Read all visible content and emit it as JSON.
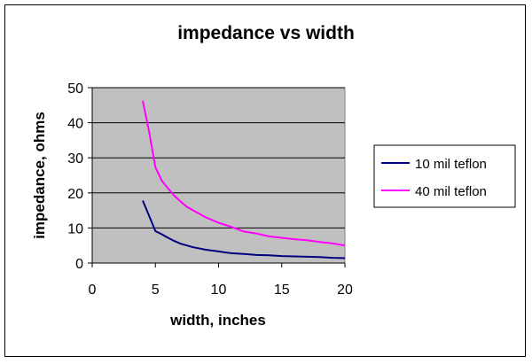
{
  "chart_data": {
    "type": "line",
    "title": "impedance vs width",
    "xlabel": "width, inches",
    "ylabel": "impedance, ohms",
    "xlim": [
      0,
      20
    ],
    "ylim": [
      0,
      50
    ],
    "xticks": [
      0,
      5,
      10,
      15,
      20
    ],
    "yticks": [
      0,
      10,
      20,
      30,
      40,
      50
    ],
    "grid": true,
    "legend_position": "right",
    "plot_background": "#c0c0c0",
    "series": [
      {
        "name": "10 mil teflon",
        "color": "#000080",
        "x": [
          4,
          4.5,
          5,
          5.5,
          6,
          6.5,
          7,
          7.5,
          8,
          9,
          10,
          11,
          12,
          13,
          14,
          15,
          16,
          17,
          18,
          19,
          20
        ],
        "y": [
          17.8,
          13.5,
          9.1,
          8.2,
          7.2,
          6.3,
          5.5,
          5.0,
          4.5,
          3.8,
          3.3,
          2.8,
          2.6,
          2.3,
          2.2,
          2.0,
          1.9,
          1.8,
          1.7,
          1.5,
          1.4
        ]
      },
      {
        "name": "40 mil teflon",
        "color": "#ff00ff",
        "x": [
          4,
          4.5,
          5,
          5.5,
          6,
          6.5,
          7,
          7.5,
          8,
          9,
          10,
          11,
          12,
          13,
          14,
          15,
          16,
          17,
          18,
          19,
          20
        ],
        "y": [
          46.3,
          37.5,
          27.3,
          23.5,
          21.3,
          19.2,
          17.5,
          16.0,
          15.0,
          13.0,
          11.5,
          10.3,
          9.0,
          8.4,
          7.6,
          7.2,
          6.8,
          6.5,
          6.0,
          5.6,
          5.0
        ]
      }
    ]
  }
}
